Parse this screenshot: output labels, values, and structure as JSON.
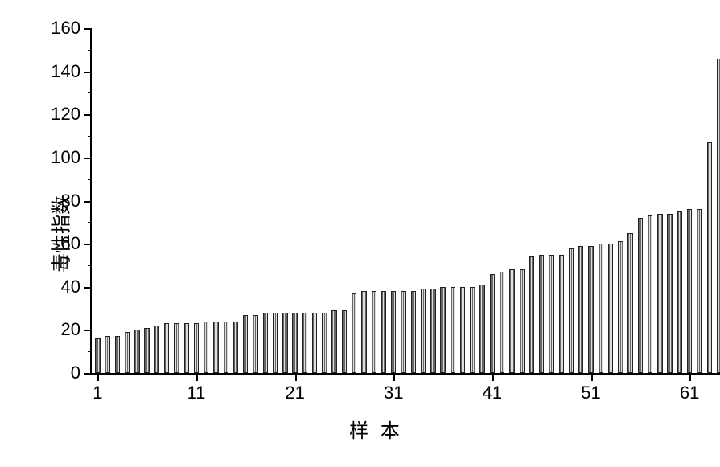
{
  "chart": {
    "type": "bar",
    "ylabel": "毒性指数",
    "xlabel": "样 本",
    "label_fontsize": 24,
    "tick_fontsize": 22,
    "ylim": [
      0,
      160
    ],
    "ytick_step": 20,
    "yticks": [
      0,
      20,
      40,
      60,
      80,
      100,
      120,
      140,
      160
    ],
    "y_minor_step": 10,
    "xlim": [
      1,
      62
    ],
    "xtick_step": 10,
    "xticks": [
      1,
      11,
      21,
      31,
      41,
      51,
      61
    ],
    "bar_fill": "#c9c9c9",
    "bar_hatch": "vertical-stripe",
    "bar_border": "#222222",
    "background_color": "#ffffff",
    "axis_color": "#000000",
    "bar_relative_width": 0.52,
    "values": [
      16,
      17,
      17,
      19,
      20,
      21,
      22,
      23,
      23,
      23,
      23,
      24,
      24,
      24,
      24,
      27,
      27,
      28,
      28,
      28,
      28,
      28,
      28,
      28,
      29,
      29,
      37,
      38,
      38,
      38,
      38,
      38,
      38,
      39,
      39,
      40,
      40,
      40,
      40,
      41,
      46,
      47,
      48,
      48,
      54,
      55,
      55,
      55,
      58,
      59,
      59,
      60,
      60,
      61,
      65,
      72,
      73,
      74,
      74,
      75,
      76,
      76,
      107,
      146
    ]
  }
}
